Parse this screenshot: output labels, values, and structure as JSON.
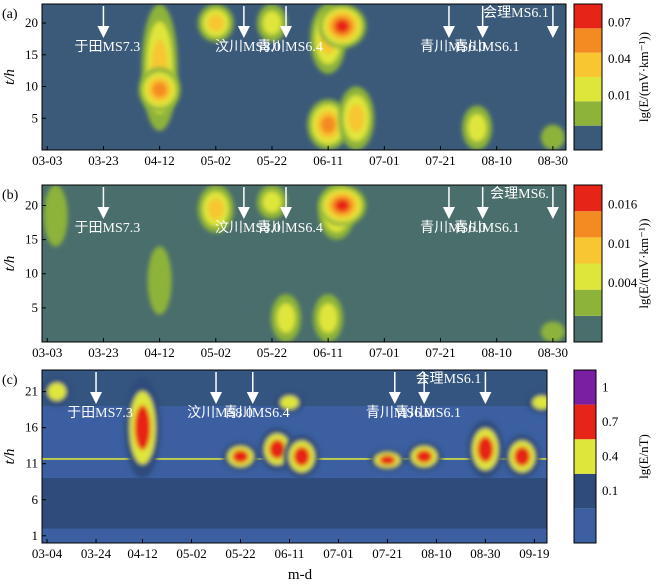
{
  "xlabel": "m-d",
  "ylabel": "t/h",
  "chart_data": [
    {
      "type": "heatmap",
      "panel_label": "(a)",
      "ylabel": "t/h",
      "x_ticks": [
        "03-03",
        "03-23",
        "04-12",
        "05-02",
        "05-22",
        "06-11",
        "07-01",
        "07-21",
        "08-10",
        "08-30"
      ],
      "y_ticks": [
        5,
        10,
        15,
        20
      ],
      "ylim": [
        0,
        23
      ],
      "colorbar_label": "lg(E/(mV·km⁻¹))",
      "colorbar_ticks": [
        "0.01",
        "0.04",
        "0.07"
      ],
      "colors": [
        "#3b5a7a",
        "#8db33a",
        "#dfe63a",
        "#f7c631",
        "#f48b22",
        "#e72418"
      ],
      "annotations": [
        {
          "date": "03-23",
          "text": "于田MS7.3"
        },
        {
          "date": "05-12",
          "text": "汶川MS8.0"
        },
        {
          "date": "05-27",
          "text": "青川MS6.4"
        },
        {
          "date": "07-24",
          "text": "青川MS6.0"
        },
        {
          "date": "08-05",
          "text": "青川MS6.1"
        },
        {
          "date": "08-30",
          "text": "会理MS6.1"
        }
      ],
      "blobs": [
        {
          "date": "04-12",
          "t": [
            3,
            23
          ],
          "level": 3
        },
        {
          "date": "04-12",
          "t": [
            6,
            13
          ],
          "level": 4
        },
        {
          "date": "05-02",
          "t": [
            17,
            23
          ],
          "level": 3
        },
        {
          "date": "05-22",
          "t": [
            17,
            23
          ],
          "level": 2
        },
        {
          "date": "06-11",
          "t": [
            12,
            23
          ],
          "level": 3
        },
        {
          "date": "06-16",
          "t": [
            16,
            23
          ],
          "level": 5
        },
        {
          "date": "06-11",
          "t": [
            0,
            8
          ],
          "level": 4
        },
        {
          "date": "06-21",
          "t": [
            0,
            10
          ],
          "level": 3
        },
        {
          "date": "08-03",
          "t": [
            0,
            7
          ],
          "level": 2
        },
        {
          "date": "08-30",
          "t": [
            0,
            4
          ],
          "level": 1
        }
      ]
    },
    {
      "type": "heatmap",
      "panel_label": "(b)",
      "ylabel": "t/h",
      "x_ticks": [
        "03-03",
        "03-23",
        "04-12",
        "05-02",
        "05-22",
        "06-11",
        "07-01",
        "07-21",
        "08-10",
        "08-30"
      ],
      "y_ticks": [
        5,
        10,
        15,
        20
      ],
      "ylim": [
        0,
        23
      ],
      "colorbar_label": "lg(E/(mV·km⁻¹))",
      "colorbar_ticks": [
        "0.004",
        "0.01",
        "0.016"
      ],
      "colors": [
        "#4a6e6c",
        "#8db33a",
        "#dfe63a",
        "#f7c631",
        "#f48b22",
        "#e72418"
      ],
      "annotations": [
        {
          "date": "03-23",
          "text": "于田MS7.3"
        },
        {
          "date": "05-12",
          "text": "汶川MS8.0"
        },
        {
          "date": "05-27",
          "text": "青川MS6.4"
        },
        {
          "date": "07-24",
          "text": "青川MS6.0"
        },
        {
          "date": "08-05",
          "text": "青川MS6.1"
        },
        {
          "date": "08-30",
          "text": "会理MS6."
        }
      ],
      "blobs": [
        {
          "date": "03-06",
          "t": [
            14,
            23
          ],
          "level": 1
        },
        {
          "date": "04-12",
          "t": [
            4,
            14
          ],
          "level": 1
        },
        {
          "date": "05-02",
          "t": [
            16,
            23
          ],
          "level": 3
        },
        {
          "date": "05-22",
          "t": [
            18,
            23
          ],
          "level": 2
        },
        {
          "date": "06-14",
          "t": [
            15,
            23
          ],
          "level": 3
        },
        {
          "date": "06-16",
          "t": [
            17,
            23
          ],
          "level": 5
        },
        {
          "date": "05-27",
          "t": [
            0,
            7
          ],
          "level": 2
        },
        {
          "date": "06-11",
          "t": [
            0,
            7
          ],
          "level": 2
        },
        {
          "date": "08-30",
          "t": [
            0,
            3
          ],
          "level": 1
        }
      ]
    },
    {
      "type": "heatmap",
      "panel_label": "(c)",
      "ylabel": "t/h",
      "x_ticks": [
        "03-04",
        "03-24",
        "04-12",
        "05-02",
        "05-22",
        "06-11",
        "07-01",
        "07-21",
        "08-10",
        "08-30",
        "09-19"
      ],
      "y_ticks": [
        1,
        6,
        11,
        16,
        21
      ],
      "ylim": [
        0,
        24
      ],
      "colorbar_label": "lg(E/nT)",
      "colorbar_ticks": [
        "0.1",
        "0.4",
        "0.7",
        "1"
      ],
      "colors": [
        "#3b5fa0",
        "#2f4b7c",
        "#dfe63a",
        "#e72418",
        "#7b1fa2"
      ],
      "annotations": [
        {
          "date": "03-24",
          "text": "于田MS7.3"
        },
        {
          "date": "05-12",
          "text": "汶川MS8.0"
        },
        {
          "date": "05-27",
          "text": "青川MS6.4"
        },
        {
          "date": "07-24",
          "text": "青川MS6.0"
        },
        {
          "date": "08-05",
          "text": "青川MS6.1"
        },
        {
          "date": "08-30",
          "text": "会理MS6.1"
        }
      ],
      "blobs": [
        {
          "date": "04-12",
          "t": [
            9,
            23
          ],
          "level": 3
        },
        {
          "date": "05-22",
          "t": [
            10,
            14
          ],
          "level": 3
        },
        {
          "date": "06-06",
          "t": [
            10,
            16
          ],
          "level": 3
        },
        {
          "date": "06-16",
          "t": [
            9,
            15
          ],
          "level": 3
        },
        {
          "date": "07-21",
          "t": [
            10,
            13
          ],
          "level": 3
        },
        {
          "date": "08-05",
          "t": [
            10,
            14
          ],
          "level": 3
        },
        {
          "date": "08-30",
          "t": [
            9,
            17
          ],
          "level": 3
        },
        {
          "date": "09-14",
          "t": [
            9,
            15
          ],
          "level": 3
        },
        {
          "date": "03-08",
          "t": [
            19,
            23
          ],
          "level": 2
        },
        {
          "date": "06-11",
          "t": [
            18,
            21
          ],
          "level": 2
        },
        {
          "date": "09-22",
          "t": [
            18,
            21
          ],
          "level": 2
        }
      ]
    }
  ]
}
